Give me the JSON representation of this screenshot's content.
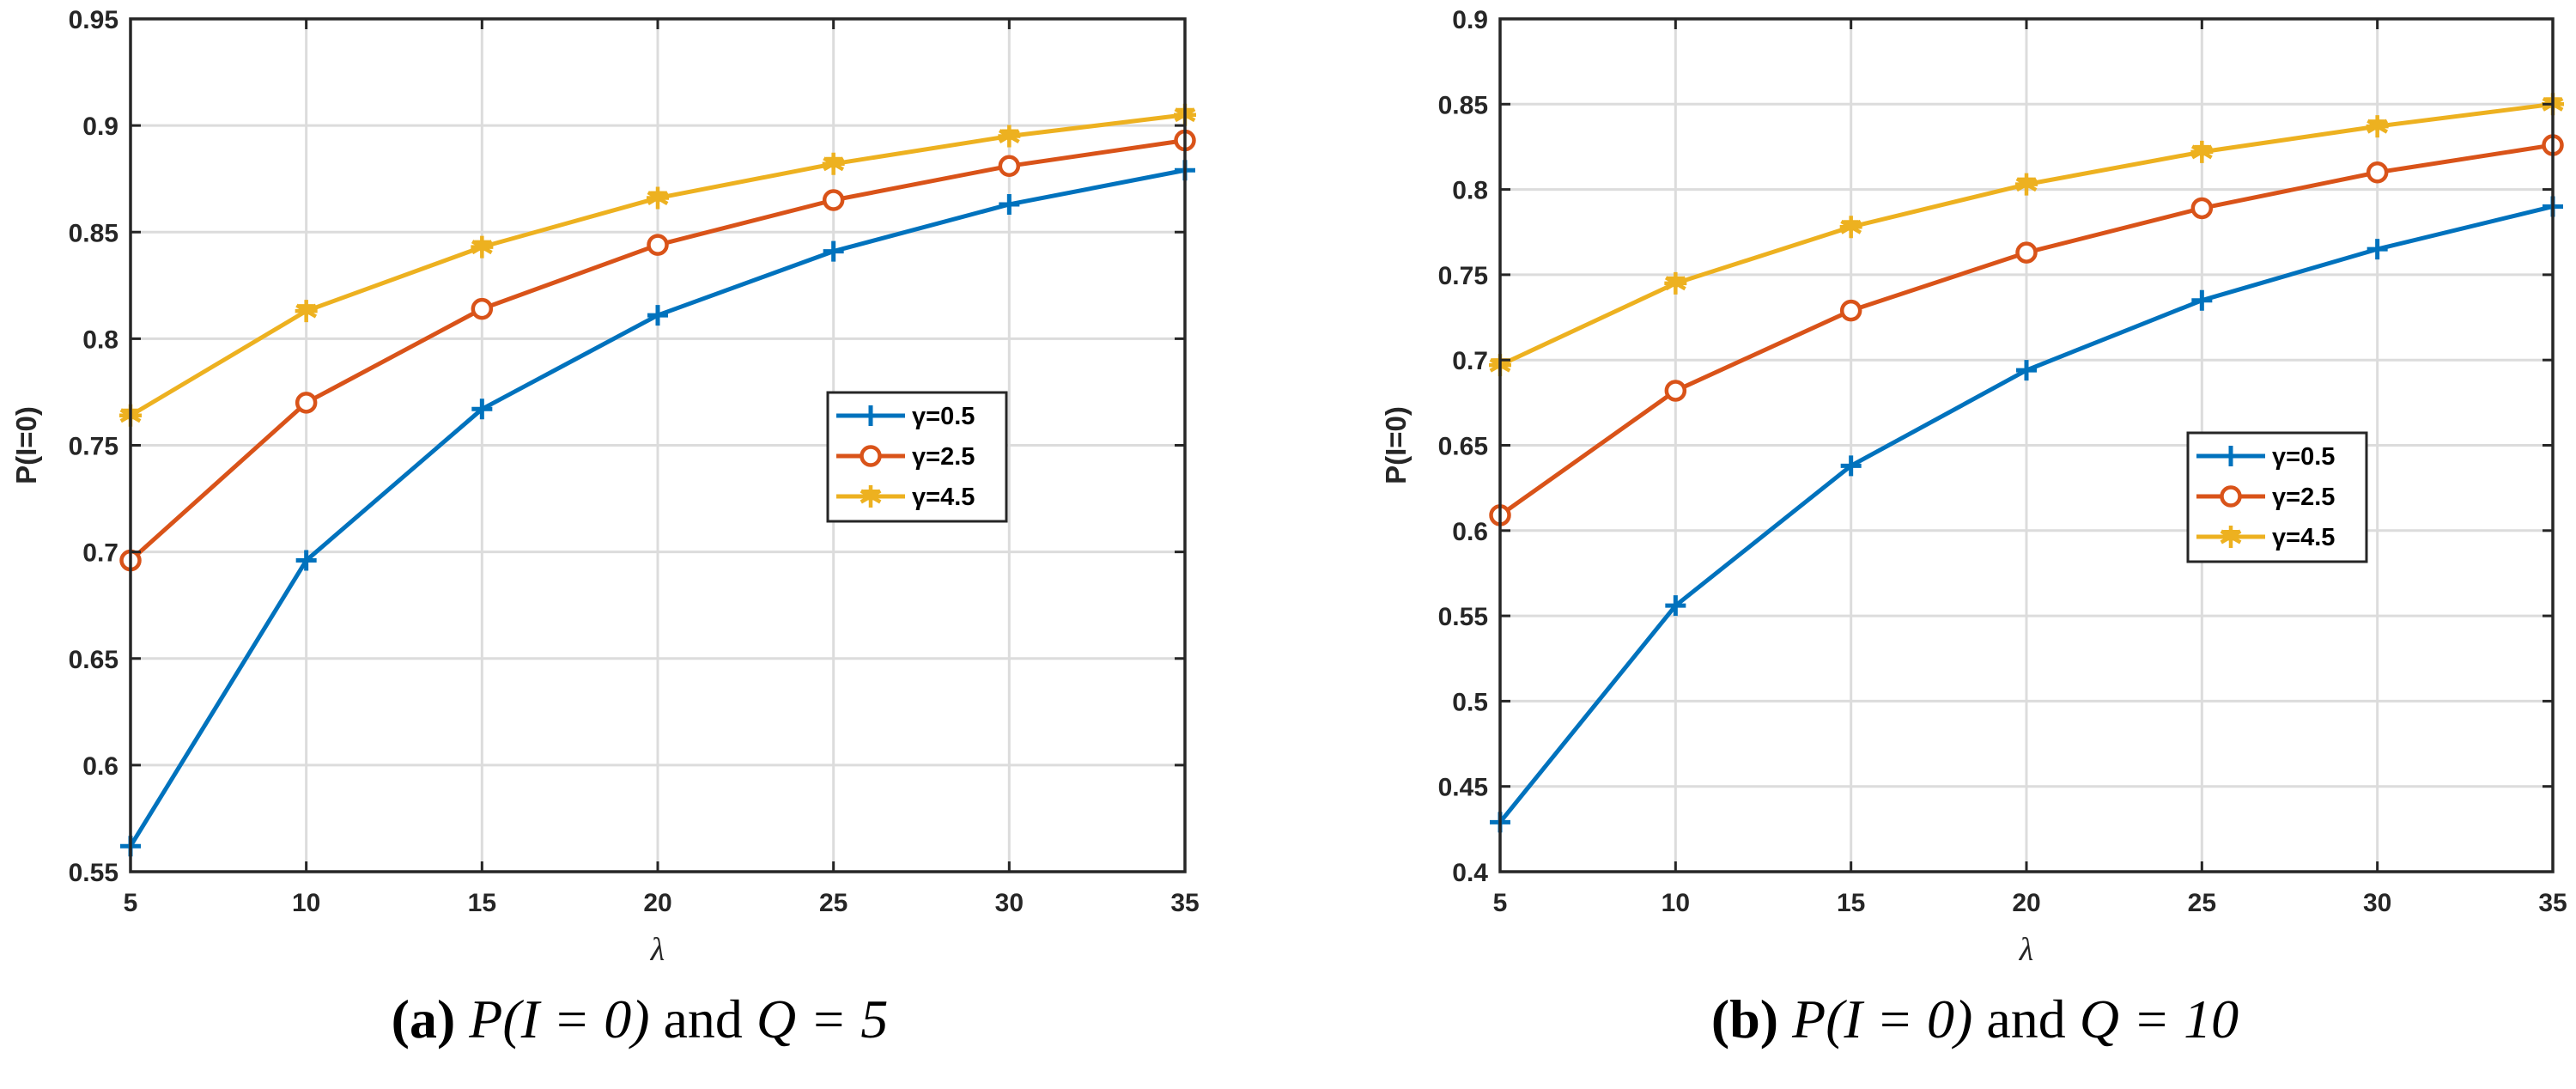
{
  "chart_data": [
    {
      "type": "line",
      "ylabel": "P(I=0)",
      "xlabel": "λ",
      "x": [
        5,
        10,
        15,
        20,
        25,
        30,
        35
      ],
      "xticks": [
        5,
        10,
        15,
        20,
        25,
        30,
        35
      ],
      "yticks": [
        0.55,
        0.6,
        0.65,
        0.7,
        0.75,
        0.8,
        0.85,
        0.9,
        0.95
      ],
      "xlim": [
        5,
        35
      ],
      "ylim": [
        0.55,
        0.95
      ],
      "grid": true,
      "legend_position": "center-right",
      "series": [
        {
          "name": "γ=0.5",
          "color": "#0072BD",
          "marker": "plus",
          "values": [
            0.562,
            0.696,
            0.767,
            0.811,
            0.841,
            0.863,
            0.879
          ]
        },
        {
          "name": "γ=2.5",
          "color": "#D95319",
          "marker": "circle",
          "values": [
            0.696,
            0.77,
            0.814,
            0.844,
            0.865,
            0.881,
            0.893
          ]
        },
        {
          "name": "γ=4.5",
          "color": "#EDB120",
          "marker": "star",
          "values": [
            0.764,
            0.813,
            0.843,
            0.866,
            0.882,
            0.895,
            0.905
          ]
        }
      ]
    },
    {
      "type": "line",
      "ylabel": "P(I=0)",
      "xlabel": "λ",
      "x": [
        5,
        10,
        15,
        20,
        25,
        30,
        35
      ],
      "xticks": [
        5,
        10,
        15,
        20,
        25,
        30,
        35
      ],
      "yticks": [
        0.4,
        0.45,
        0.5,
        0.55,
        0.6,
        0.65,
        0.7,
        0.75,
        0.8,
        0.85,
        0.9
      ],
      "xlim": [
        5,
        35
      ],
      "ylim": [
        0.4,
        0.9
      ],
      "grid": true,
      "legend_position": "center-right",
      "series": [
        {
          "name": "γ=0.5",
          "color": "#0072BD",
          "marker": "plus",
          "values": [
            0.429,
            0.556,
            0.638,
            0.694,
            0.735,
            0.765,
            0.79
          ]
        },
        {
          "name": "γ=2.5",
          "color": "#D95319",
          "marker": "circle",
          "values": [
            0.609,
            0.682,
            0.729,
            0.763,
            0.789,
            0.81,
            0.826
          ]
        },
        {
          "name": "γ=4.5",
          "color": "#EDB120",
          "marker": "star",
          "values": [
            0.697,
            0.745,
            0.778,
            0.803,
            0.822,
            0.837,
            0.85
          ]
        }
      ]
    }
  ],
  "captions": [
    {
      "label": "(a)",
      "expr": "P(I = 0)",
      "joiner": " and ",
      "q": "Q = 5"
    },
    {
      "label": "(b)",
      "expr": "P(I = 0)",
      "joiner": " and ",
      "q": "Q = 10"
    }
  ]
}
